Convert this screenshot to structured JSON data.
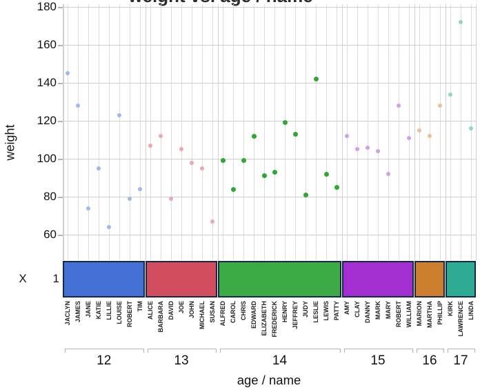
{
  "title": "weight vs. age / name",
  "y_axis": {
    "label": "weight",
    "ticks": [
      180,
      160,
      140,
      120,
      100,
      80,
      60
    ]
  },
  "x_axis": {
    "title": "age / name",
    "row_label": "X",
    "row_value": "1"
  },
  "colors": {
    "band_border": "#16284a",
    "vertical_gridline": "#dcdcdc",
    "horizontal_gridline": "#cdcdcd",
    "axis_text": "#111111"
  },
  "chart_data": {
    "type": "scatter",
    "title": "weight vs. age / name",
    "xlabel": "age / name",
    "ylabel": "weight",
    "ylim": [
      47,
      181
    ],
    "grid": true,
    "x_grouping": "names grouped by age with colored band per age group",
    "groups": [
      {
        "age": 12,
        "band_color": "#4571d6",
        "dot_color": "#a3b7ec",
        "points": [
          {
            "name": "JACLYN",
            "weight": 145
          },
          {
            "name": "JAMES",
            "weight": 128
          },
          {
            "name": "JANE",
            "weight": 74
          },
          {
            "name": "KATIE",
            "weight": 95
          },
          {
            "name": "LILLIE",
            "weight": 64
          },
          {
            "name": "LOUISE",
            "weight": 123
          },
          {
            "name": "ROBERT",
            "weight": 79
          },
          {
            "name": "TIM",
            "weight": 84
          }
        ]
      },
      {
        "age": 13,
        "band_color": "#d14e5f",
        "dot_color": "#efa6b0",
        "points": [
          {
            "name": "ALICE",
            "weight": 107
          },
          {
            "name": "BARBARA",
            "weight": 112
          },
          {
            "name": "DAVID",
            "weight": 79
          },
          {
            "name": "JOE",
            "weight": 105
          },
          {
            "name": "JOHN",
            "weight": 98
          },
          {
            "name": "MICHAEL",
            "weight": 95
          },
          {
            "name": "SUSAN",
            "weight": 67
          }
        ]
      },
      {
        "age": 14,
        "band_color": "#3cab46",
        "dot_color": "#2ea733",
        "points": [
          {
            "name": "ALFRED",
            "weight": 99
          },
          {
            "name": "CAROL",
            "weight": 84
          },
          {
            "name": "CHRIS",
            "weight": 99
          },
          {
            "name": "EDWARD",
            "weight": 112
          },
          {
            "name": "ELIZABETH",
            "weight": 91
          },
          {
            "name": "FREDERICK",
            "weight": 93
          },
          {
            "name": "HENRY",
            "weight": 119
          },
          {
            "name": "JEFFREY",
            "weight": 113
          },
          {
            "name": "JUDY",
            "weight": 81
          },
          {
            "name": "LESLIE",
            "weight": 142
          },
          {
            "name": "LEWIS",
            "weight": 92
          },
          {
            "name": "PATTY",
            "weight": 85
          }
        ]
      },
      {
        "age": 15,
        "band_color": "#a42fd1",
        "dot_color": "#d2a0e6",
        "points": [
          {
            "name": "AMY",
            "weight": 112
          },
          {
            "name": "CLAY",
            "weight": 105
          },
          {
            "name": "DANNY",
            "weight": 106
          },
          {
            "name": "MARK",
            "weight": 104
          },
          {
            "name": "MARY",
            "weight": 92
          },
          {
            "name": "ROBERT",
            "weight": 128
          },
          {
            "name": "WILLIAM",
            "weight": 111
          }
        ]
      },
      {
        "age": 16,
        "band_color": "#cc7e2e",
        "dot_color": "#efc098",
        "points": [
          {
            "name": "MARION",
            "weight": 115
          },
          {
            "name": "MARTHA",
            "weight": 112
          },
          {
            "name": "PHILLIP",
            "weight": 128
          }
        ]
      },
      {
        "age": 17,
        "band_color": "#2eab92",
        "dot_color": "#8ed8c0",
        "points": [
          {
            "name": "KIRK",
            "weight": 134
          },
          {
            "name": "LAWRENCE",
            "weight": 172
          },
          {
            "name": "LINDA",
            "weight": 116
          }
        ]
      }
    ]
  }
}
